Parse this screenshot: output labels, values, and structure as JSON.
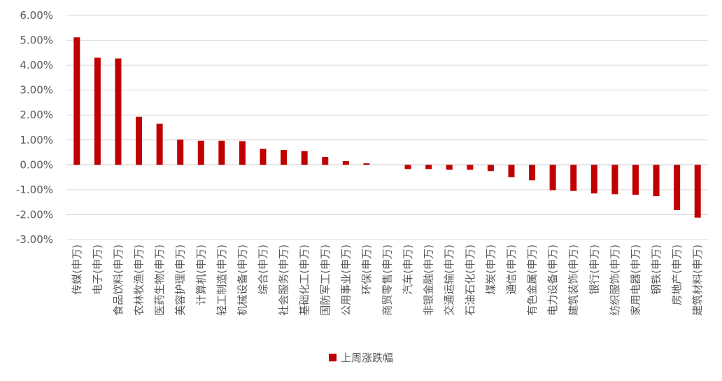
{
  "chart_data": {
    "type": "bar",
    "categories": [
      "传媒(申万)",
      "电子(申万)",
      "食品饮料(申万)",
      "农林牧渔(申万)",
      "医药生物(申万)",
      "美容护理(申万)",
      "计算机(申万)",
      "轻工制造(申万)",
      "机械设备(申万)",
      "综合(申万)",
      "社会服务(申万)",
      "基础化工(申万)",
      "国防军工(申万)",
      "公用事业(申万)",
      "环保(申万)",
      "商贸零售(申万)",
      "汽车(申万)",
      "非银金融(申万)",
      "交通运输(申万)",
      "石油石化(申万)",
      "煤炭(申万)",
      "通信(申万)",
      "有色金属(申万)",
      "电力设备(申万)",
      "建筑装饰(申万)",
      "银行(申万)",
      "纺织服饰(申万)",
      "家用电器(申万)",
      "钢铁(申万)",
      "房地产(申万)",
      "建筑材料(申万)"
    ],
    "series": [
      {
        "name": "上周涨跌幅",
        "values": [
          5.12,
          4.3,
          4.27,
          1.93,
          1.65,
          1.01,
          0.97,
          0.97,
          0.95,
          0.64,
          0.6,
          0.55,
          0.32,
          0.15,
          0.06,
          0.0,
          -0.17,
          -0.17,
          -0.2,
          -0.2,
          -0.25,
          -0.5,
          -0.62,
          -1.02,
          -1.05,
          -1.15,
          -1.18,
          -1.2,
          -1.26,
          -1.82,
          -2.12
        ]
      }
    ],
    "yticks": [
      "6.00%",
      "5.00%",
      "4.00%",
      "3.00%",
      "2.00%",
      "1.00%",
      "0.00%",
      "-1.00%",
      "-2.00%",
      "-3.00%"
    ],
    "ylim": [
      -3,
      6
    ],
    "grid": true,
    "legend_position": "bottom",
    "colors": {
      "bar": "#c00000",
      "grid": "#d9d9d9",
      "axis": "#bfbfbf",
      "text": "#595959"
    }
  }
}
